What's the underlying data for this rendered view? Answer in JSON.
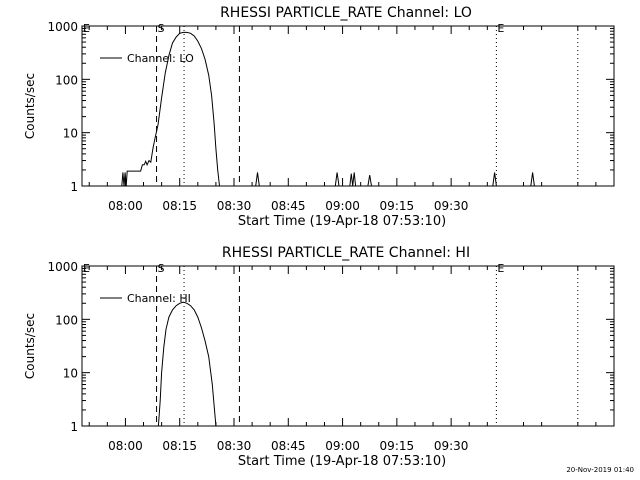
{
  "footer": {
    "timestamp": "20-Nov-2019 01:40"
  },
  "chart_data": [
    {
      "type": "line",
      "title": "RHESSI PARTICLE_RATE Channel: LO",
      "xlabel": "Start Time (19-Apr-18 07:53:10)",
      "ylabel": "Counts/sec",
      "x_ticks": [
        "08:00",
        "08:15",
        "08:30",
        "08:45",
        "09:00",
        "09:15",
        "09:30"
      ],
      "y_ticks": [
        "1",
        "10",
        "100",
        "1000"
      ],
      "y_scale": "log",
      "ylim": [
        1,
        1000
      ],
      "xlim_minutes": [
        -12,
        135
      ],
      "legend": {
        "label": "Channel: LO",
        "position": "top-left"
      },
      "markers": [
        {
          "label": "S",
          "x": 8.6,
          "style": "dashed"
        },
        {
          "label": "E",
          "x": 102.5,
          "style": "dotted"
        }
      ],
      "vlines": [
        {
          "x": 16.2,
          "style": "dotted"
        },
        {
          "x": 31.5,
          "style": "dashed"
        },
        {
          "x": 125,
          "style": "dotted"
        }
      ],
      "series": [
        {
          "name": "Channel: LO",
          "points": [
            [
              -1.0,
              1
            ],
            [
              -0.7,
              1.8
            ],
            [
              -0.4,
              1
            ],
            [
              -0.1,
              1.8
            ],
            [
              0.2,
              1
            ],
            [
              0.5,
              1.9
            ],
            [
              1.0,
              1.9
            ],
            [
              2.5,
              1.9
            ],
            [
              4.2,
              1.9
            ],
            [
              4.7,
              2.5
            ],
            [
              5.2,
              2.5
            ],
            [
              5.6,
              2.9
            ],
            [
              6.0,
              2.5
            ],
            [
              6.5,
              3.0
            ],
            [
              7.0,
              2.8
            ],
            [
              7.6,
              5
            ],
            [
              8.2,
              8
            ],
            [
              9.0,
              14
            ],
            [
              10.0,
              45
            ],
            [
              11.0,
              130
            ],
            [
              12.0,
              280
            ],
            [
              13.0,
              480
            ],
            [
              14.0,
              620
            ],
            [
              15.0,
              730
            ],
            [
              16.0,
              760
            ],
            [
              17.0,
              760
            ],
            [
              18.0,
              730
            ],
            [
              19.0,
              650
            ],
            [
              20.0,
              520
            ],
            [
              21.0,
              380
            ],
            [
              22.0,
              240
            ],
            [
              23.0,
              120
            ],
            [
              23.8,
              50
            ],
            [
              24.5,
              15
            ],
            [
              25.0,
              5
            ],
            [
              25.5,
              2
            ],
            [
              26.0,
              1
            ],
            [
              36.0,
              1
            ],
            [
              36.5,
              1.8
            ],
            [
              37.0,
              1
            ],
            [
              58.0,
              1
            ],
            [
              58.5,
              1.8
            ],
            [
              59.0,
              1
            ],
            [
              62.0,
              1
            ],
            [
              62.4,
              1.7
            ],
            [
              62.8,
              1
            ],
            [
              63.2,
              1.8
            ],
            [
              63.6,
              1
            ],
            [
              67.0,
              1
            ],
            [
              67.5,
              1.6
            ],
            [
              68.0,
              1
            ],
            [
              101.5,
              1
            ],
            [
              102.0,
              1.8
            ],
            [
              102.5,
              1
            ],
            [
              112.0,
              1
            ],
            [
              112.5,
              1.8
            ],
            [
              113.0,
              1
            ]
          ]
        }
      ]
    },
    {
      "type": "line",
      "title": "RHESSI PARTICLE_RATE Channel: HI",
      "xlabel": "Start Time (19-Apr-18 07:53:10)",
      "ylabel": "Counts/sec",
      "x_ticks": [
        "08:00",
        "08:15",
        "08:30",
        "08:45",
        "09:00",
        "09:15",
        "09:30"
      ],
      "y_ticks": [
        "1",
        "10",
        "100",
        "1000"
      ],
      "y_scale": "log",
      "ylim": [
        1,
        1000
      ],
      "xlim_minutes": [
        -12,
        135
      ],
      "legend": {
        "label": "Channel: HI",
        "position": "top-left"
      },
      "markers": [
        {
          "label": "S",
          "x": 8.6,
          "style": "dashed"
        },
        {
          "label": "E",
          "x": 102.5,
          "style": "dotted"
        }
      ],
      "vlines": [
        {
          "x": 16.2,
          "style": "dotted"
        },
        {
          "x": 31.5,
          "style": "dashed"
        },
        {
          "x": 125,
          "style": "dotted"
        }
      ],
      "series": [
        {
          "name": "Channel: HI",
          "points": [
            [
              9.1,
              1
            ],
            [
              9.6,
              3
            ],
            [
              10.0,
              10
            ],
            [
              10.6,
              30
            ],
            [
              11.2,
              65
            ],
            [
              12.0,
              110
            ],
            [
              13.0,
              150
            ],
            [
              14.0,
              180
            ],
            [
              15.0,
              200
            ],
            [
              16.0,
              210
            ],
            [
              17.0,
              200
            ],
            [
              18.0,
              180
            ],
            [
              19.0,
              150
            ],
            [
              20.0,
              110
            ],
            [
              21.0,
              70
            ],
            [
              22.0,
              40
            ],
            [
              23.0,
              20
            ],
            [
              24.0,
              6
            ],
            [
              24.6,
              2
            ],
            [
              25.0,
              1
            ]
          ]
        }
      ]
    }
  ]
}
